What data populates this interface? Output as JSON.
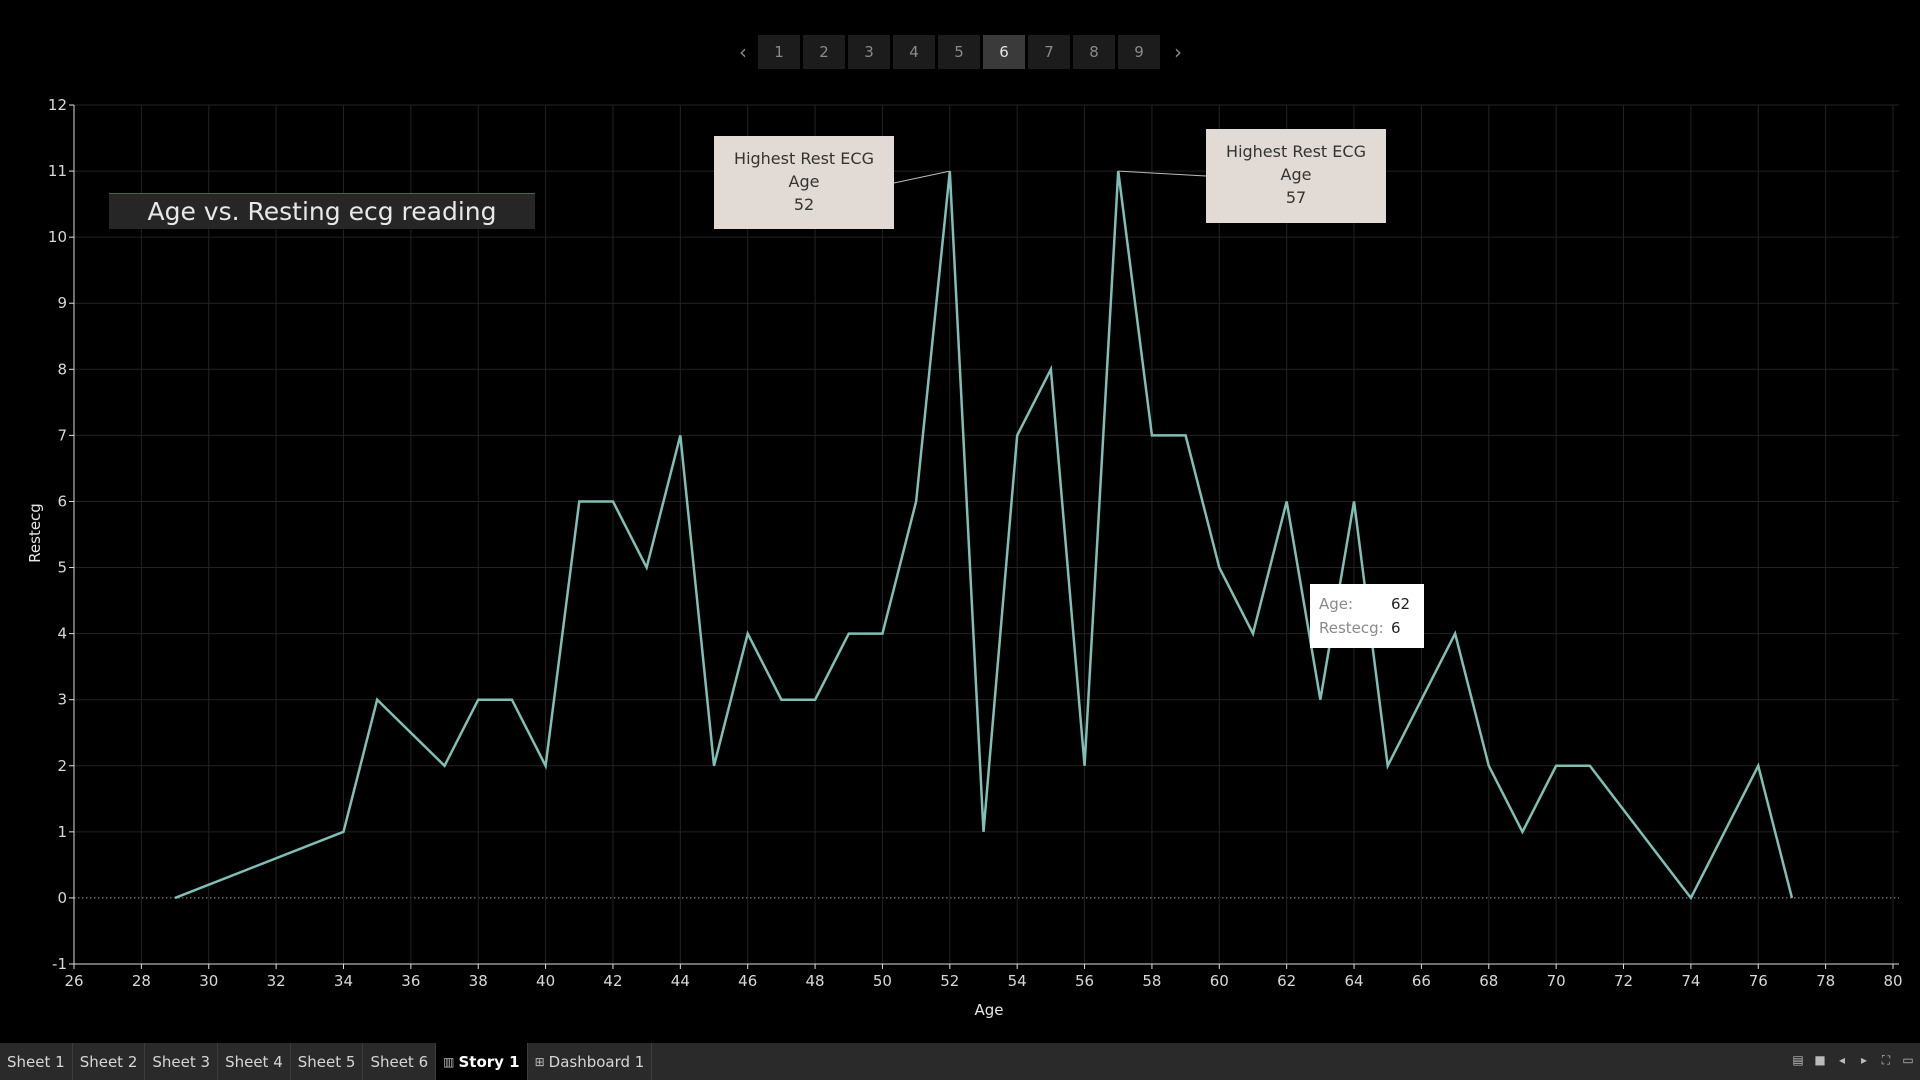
{
  "story_nav": {
    "prev_icon": "chevron-left-icon",
    "next_icon": "chevron-right-icon",
    "pages": [
      "1",
      "2",
      "3",
      "4",
      "5",
      "6",
      "7",
      "8",
      "9"
    ],
    "active_page": "6"
  },
  "chart_title": "Age vs. Resting ecg reading",
  "annotations": [
    {
      "line1": "Highest Rest ECG",
      "line2": "Age",
      "value": "52"
    },
    {
      "line1": "Highest Rest ECG",
      "line2": "Age",
      "value": "57"
    }
  ],
  "tooltip": {
    "age_label": "Age:",
    "age_value": "62",
    "restecg_label": "Restecg:",
    "restecg_value": "6"
  },
  "chart_data": {
    "type": "line",
    "title": "Age vs. Resting ecg reading",
    "xlabel": "Age",
    "ylabel": "Restecg",
    "xlim": [
      26,
      80
    ],
    "ylim": [
      -1,
      12
    ],
    "x_ticks": [
      26,
      28,
      30,
      32,
      34,
      36,
      38,
      40,
      42,
      44,
      46,
      48,
      50,
      52,
      54,
      56,
      58,
      60,
      62,
      64,
      66,
      68,
      70,
      72,
      74,
      76,
      78,
      80
    ],
    "y_ticks": [
      -1,
      0,
      1,
      2,
      3,
      4,
      5,
      6,
      7,
      8,
      9,
      10,
      11,
      12
    ],
    "grid": true,
    "line_color": "#7fbfb5",
    "x": [
      29,
      34,
      35,
      37,
      38,
      39,
      40,
      41,
      42,
      43,
      44,
      45,
      46,
      47,
      48,
      49,
      50,
      51,
      52,
      53,
      54,
      55,
      56,
      57,
      58,
      59,
      60,
      61,
      62,
      63,
      64,
      65,
      66,
      67,
      68,
      69,
      70,
      71,
      74,
      76,
      77
    ],
    "y": [
      0,
      1,
      3,
      2,
      3,
      3,
      2,
      6,
      6,
      5,
      7,
      2,
      4,
      3,
      3,
      4,
      4,
      6,
      11,
      1,
      7,
      8,
      2,
      11,
      7,
      7,
      5,
      4,
      6,
      3,
      6,
      2,
      3,
      4,
      2,
      1,
      2,
      2,
      0,
      2,
      0
    ]
  },
  "tabs": [
    {
      "label": "Sheet 1",
      "icon": ""
    },
    {
      "label": "Sheet 2",
      "icon": ""
    },
    {
      "label": "Sheet 3",
      "icon": ""
    },
    {
      "label": "Sheet 4",
      "icon": ""
    },
    {
      "label": "Sheet 5",
      "icon": ""
    },
    {
      "label": "Sheet 6",
      "icon": ""
    },
    {
      "label": "Story 1",
      "icon": "story-icon"
    },
    {
      "label": "Dashboard 1",
      "icon": "dashboard-icon"
    }
  ],
  "active_tab": "Story 1",
  "tab_controls": [
    "filmstrip-view-icon",
    "tab-view-icon",
    "prev-sheet-icon",
    "next-sheet-icon",
    "fullscreen-icon",
    "presentation-icon"
  ]
}
